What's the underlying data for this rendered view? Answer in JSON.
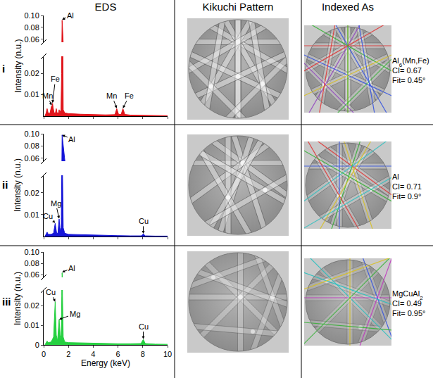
{
  "headers": [
    "EDS",
    "Kikuchi Pattern",
    "Indexed As"
  ],
  "rows": [
    {
      "label": "i",
      "indexed_as": [
        "Al6(Mn,Fe)",
        "CI= 0.67",
        "Fit= 0.45°"
      ]
    },
    {
      "label": "ii",
      "indexed_as": [
        "Al",
        "CI= 0.71",
        "Fit= 0.9°"
      ]
    },
    {
      "label": "iii",
      "indexed_as": [
        "MgCuAl2",
        "CI= 0.49",
        "Fit= 0.95°"
      ]
    }
  ],
  "chart_data": [
    {
      "type": "area",
      "y_label": "Intensity (n.u.)",
      "color": "#e0151b",
      "x": [
        0.1,
        0.2,
        0.28,
        0.36,
        0.5,
        0.6,
        0.64,
        0.68,
        0.72,
        0.76,
        0.85,
        0.95,
        1.02,
        1.08,
        1.2,
        1.25,
        1.3,
        1.4,
        1.45,
        1.49,
        1.53,
        1.58,
        1.7,
        2,
        3,
        4,
        5,
        5.75,
        5.9,
        6.05,
        6.25,
        6.4,
        6.55,
        7,
        8,
        9,
        10
      ],
      "values": [
        0,
        0.0015,
        0.0035,
        0.0015,
        0.0012,
        0.004,
        0.0048,
        0.0042,
        0.006,
        0.004,
        0.0015,
        0.0015,
        0.0035,
        0.0015,
        0.0015,
        0.003,
        0.0016,
        0.003,
        0.02,
        0.092,
        0.02,
        0.003,
        0.0015,
        0.0012,
        0.0009,
        0.0007,
        0.0006,
        0.0007,
        0.0035,
        0.0008,
        0.0008,
        0.0035,
        0.0008,
        0.0005,
        0.0004,
        0.0003,
        0.0002
      ],
      "xlim": [
        0,
        10
      ],
      "xticks": [
        0,
        2,
        4,
        6,
        8,
        10
      ],
      "ylim": [
        [
          0,
          0.028
        ],
        [
          0.055,
          0.1
        ]
      ],
      "yticks": [
        0.01,
        0.02,
        0.06,
        0.08,
        {
          "value": 0.1,
          "label": "0.10"
        }
      ],
      "tick_labels": "y",
      "annotations": [
        {
          "text": "Mn",
          "x": 0.64,
          "y": 0.005
        },
        {
          "text": "Fe",
          "x": 0.72,
          "y": 0.0062
        },
        {
          "text": "Al",
          "x": 1.49,
          "y": 0.093
        },
        {
          "text": "Mn",
          "x": 5.9,
          "y": 0.0037
        },
        {
          "text": "Fe",
          "x": 6.4,
          "y": 0.0037
        }
      ]
    },
    {
      "type": "area",
      "y_label": "Intensity (n.u.)",
      "color": "#1515d8",
      "x": [
        0.1,
        0.2,
        0.28,
        0.36,
        0.6,
        0.8,
        0.93,
        1.05,
        1.15,
        1.25,
        1.33,
        1.42,
        1.46,
        1.49,
        1.52,
        1.58,
        1.7,
        2,
        3,
        4,
        5,
        6,
        7,
        7.9,
        8.04,
        8.2,
        9,
        10
      ],
      "values": [
        0,
        0.001,
        0.002,
        0.001,
        0.001,
        0.0015,
        0.006,
        0.0015,
        0.0015,
        0.008,
        0.0025,
        0.004,
        0.03,
        0.098,
        0.03,
        0.004,
        0.0015,
        0.001,
        0.0008,
        0.0006,
        0.0005,
        0.0004,
        0.0003,
        0.0003,
        0.0012,
        0.0003,
        0.0002,
        0.0002
      ],
      "xlim": [
        0,
        10
      ],
      "xticks": [
        0,
        2,
        4,
        6,
        8,
        10
      ],
      "ylim": [
        [
          0,
          0.028
        ],
        [
          0.055,
          0.1
        ]
      ],
      "yticks": [
        0.01,
        0.02,
        0.06,
        0.08,
        {
          "value": 0.1,
          "label": "0.10"
        }
      ],
      "tick_labels": "y",
      "annotations": [
        {
          "text": "Cu",
          "x": 0.93,
          "y": 0.0062
        },
        {
          "text": "Mg",
          "x": 1.25,
          "y": 0.0082
        },
        {
          "text": "Al",
          "x": 1.49,
          "y": 0.098
        },
        {
          "text": "Cu",
          "x": 8.04,
          "y": 0.0013
        }
      ]
    },
    {
      "type": "area",
      "y_label": "Intensity (n.u.)",
      "x_label": "Energy (keV)",
      "color": "#25d040",
      "x": [
        0.1,
        0.2,
        0.28,
        0.36,
        0.6,
        0.8,
        0.93,
        1.02,
        1.12,
        1.25,
        1.35,
        1.42,
        1.46,
        1.49,
        1.52,
        1.58,
        1.7,
        2,
        3,
        4,
        5,
        6,
        7,
        7.85,
        8.04,
        8.2,
        9,
        10
      ],
      "values": [
        0,
        0.001,
        0.002,
        0.0012,
        0.0015,
        0.004,
        0.022,
        0.005,
        0.002,
        0.013,
        0.003,
        0.005,
        0.025,
        0.063,
        0.025,
        0.004,
        0.0015,
        0.0012,
        0.001,
        0.0008,
        0.0007,
        0.0006,
        0.0006,
        0.0007,
        0.0028,
        0.0007,
        0.0004,
        0.0003
      ],
      "xlim": [
        0,
        10
      ],
      "xticks": [
        0,
        2,
        4,
        6,
        8,
        10
      ],
      "ylim": [
        [
          0,
          0.028
        ],
        [
          0.055,
          0.1
        ]
      ],
      "yticks": [
        0,
        0.01,
        0.02,
        0.06,
        0.08,
        {
          "value": 0.1,
          "label": "0.10"
        }
      ],
      "annotations": [
        {
          "text": "Cu",
          "x": 0.93,
          "y": 0.022
        },
        {
          "text": "Mg",
          "x": 1.25,
          "y": 0.013
        },
        {
          "text": "Al",
          "x": 1.49,
          "y": 0.064
        },
        {
          "text": "Cu",
          "x": 8.04,
          "y": 0.003
        }
      ]
    }
  ]
}
